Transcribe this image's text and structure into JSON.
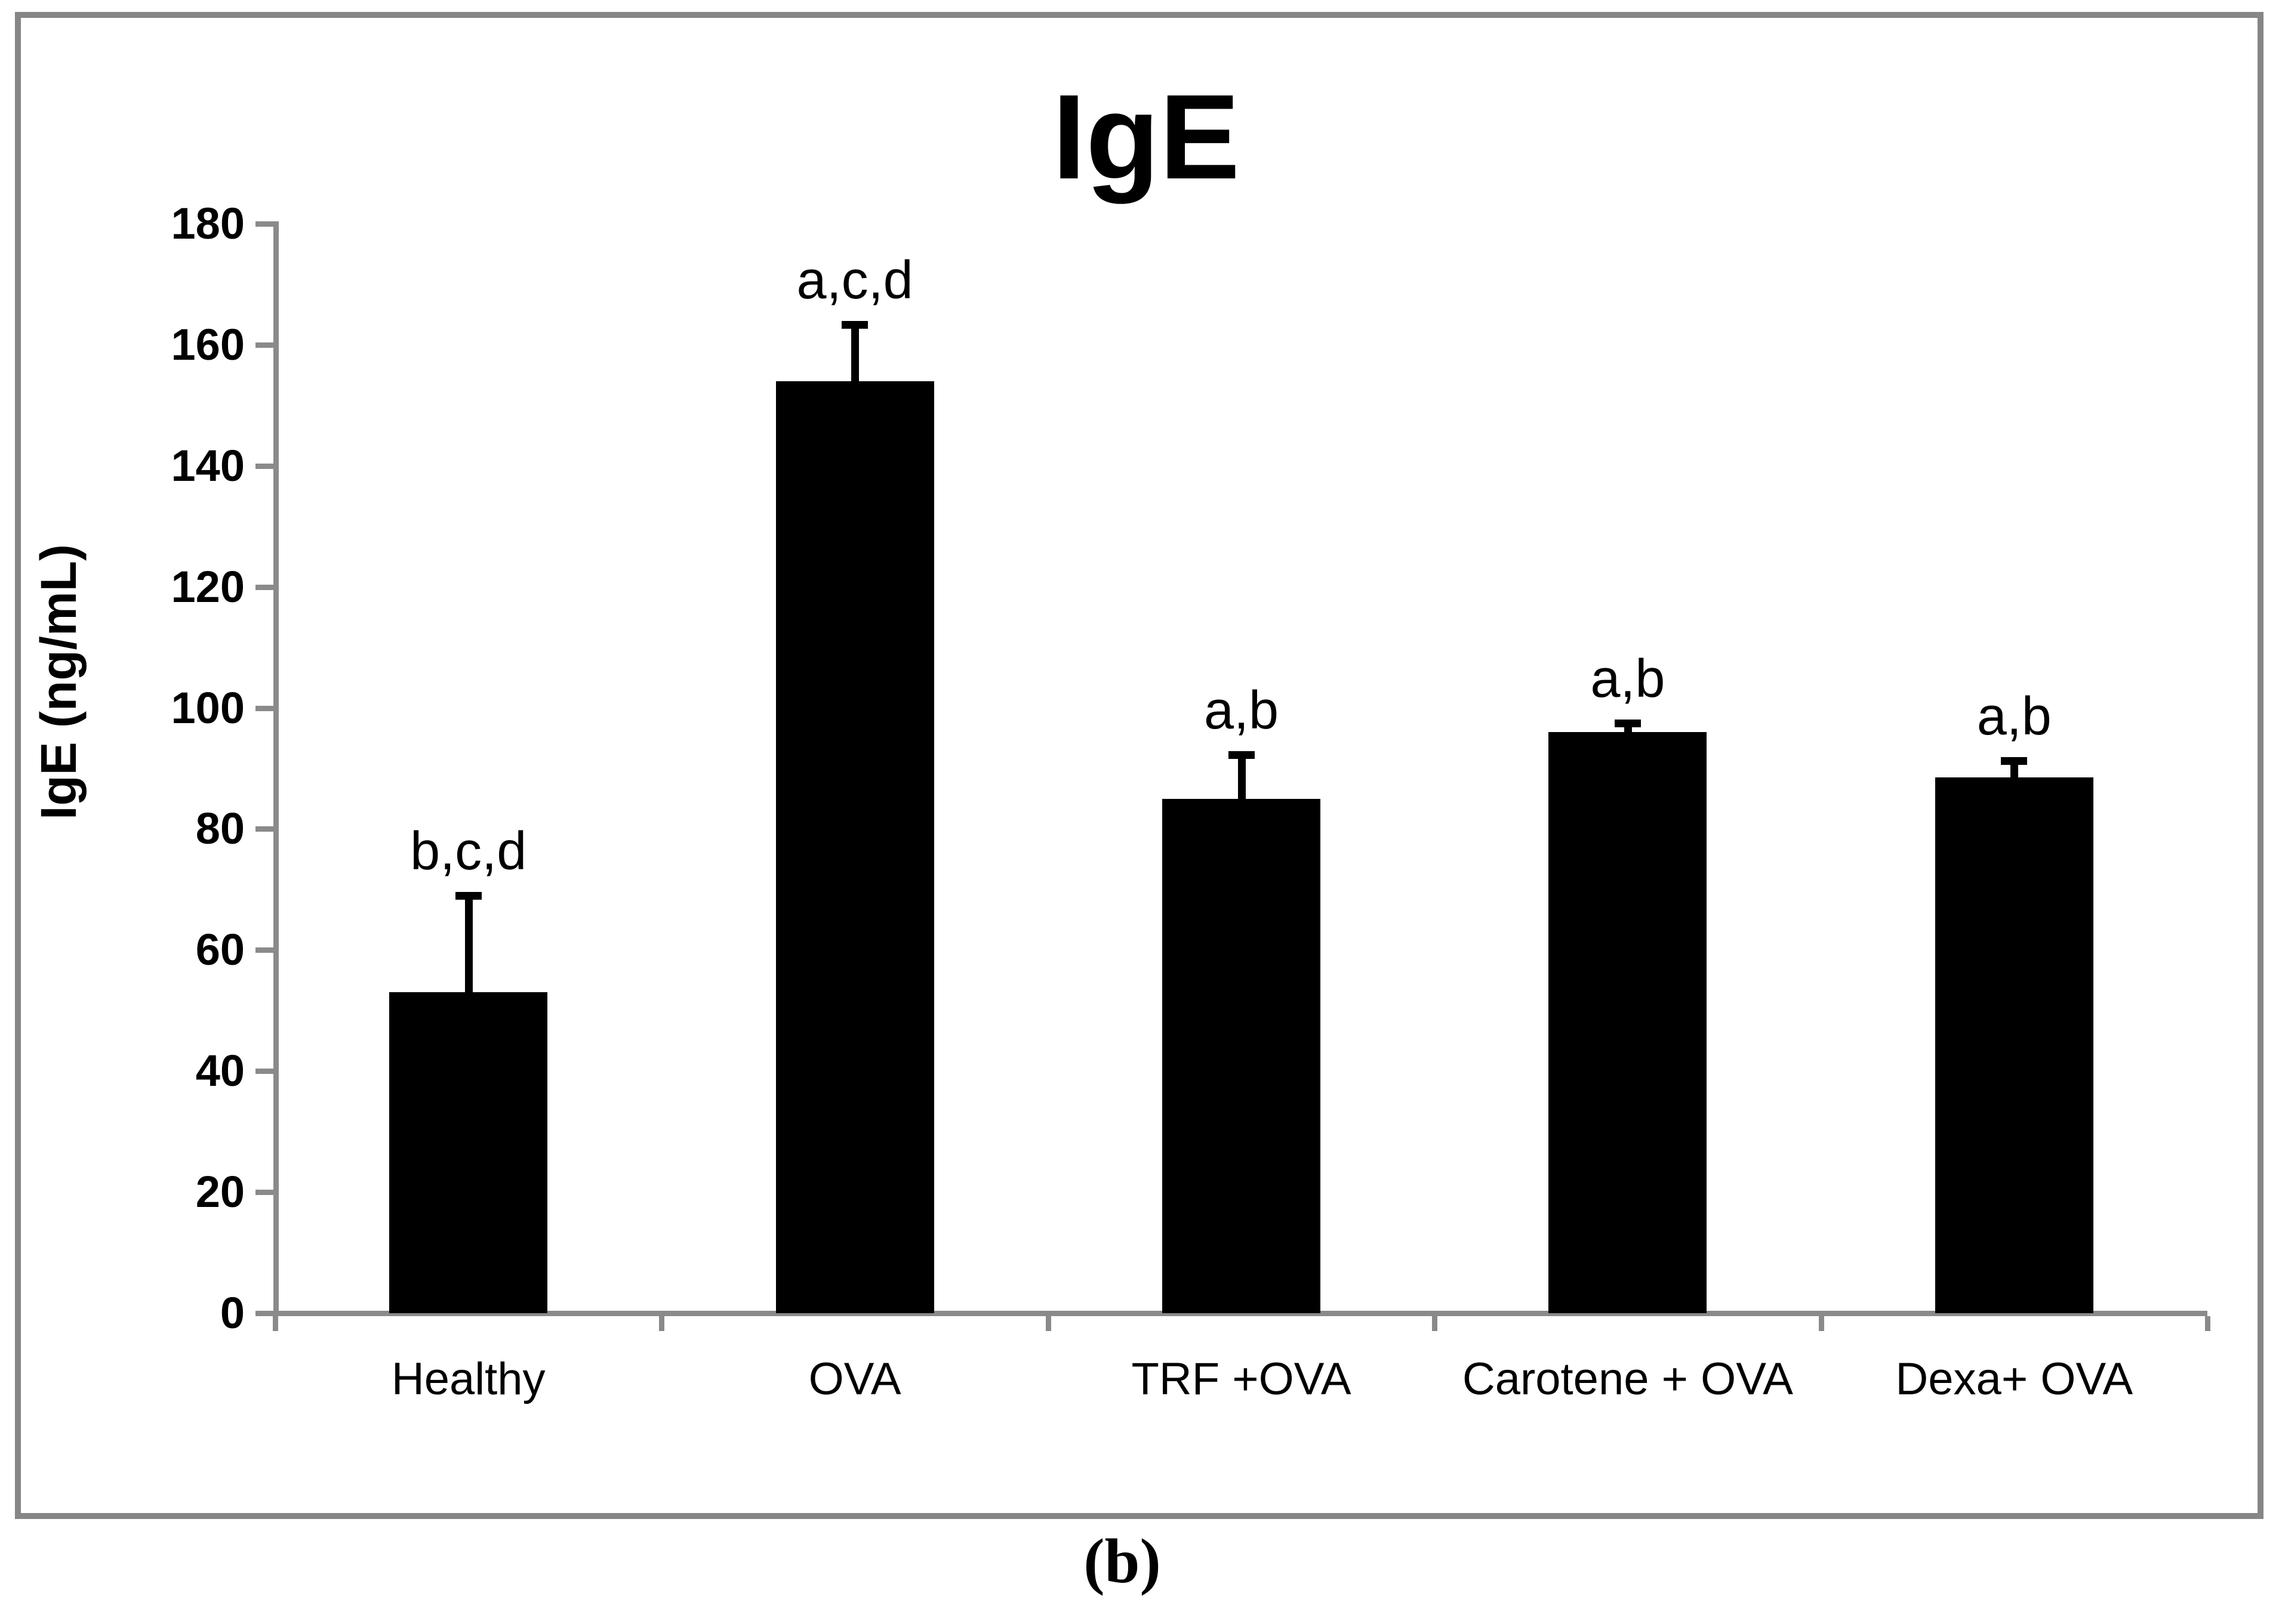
{
  "figure": {
    "caption": "(b)"
  },
  "chart_data": {
    "type": "bar",
    "title": "IgE",
    "xlabel": "",
    "ylabel": "IgE (ng/mL)",
    "categories": [
      "Healthy",
      "OVA",
      "TRF +OVA",
      "Carotene + OVA",
      "Dexa+ OVA"
    ],
    "values": [
      53,
      154,
      85,
      96,
      88.5
    ],
    "errors_plus": [
      16,
      9.3,
      7.3,
      1.5,
      2.8
    ],
    "annotations": [
      "b,c,d",
      "a,c,d",
      "a,b",
      "a,b",
      "a,b"
    ],
    "ylim": [
      0,
      180
    ],
    "ytick_step": 20,
    "yticks": [
      0,
      20,
      40,
      60,
      80,
      100,
      120,
      140,
      160,
      180
    ],
    "grid": false,
    "legend": null,
    "bar_color": "#000000",
    "axis_color": "#8a8a8a",
    "border_color": "#868686"
  }
}
